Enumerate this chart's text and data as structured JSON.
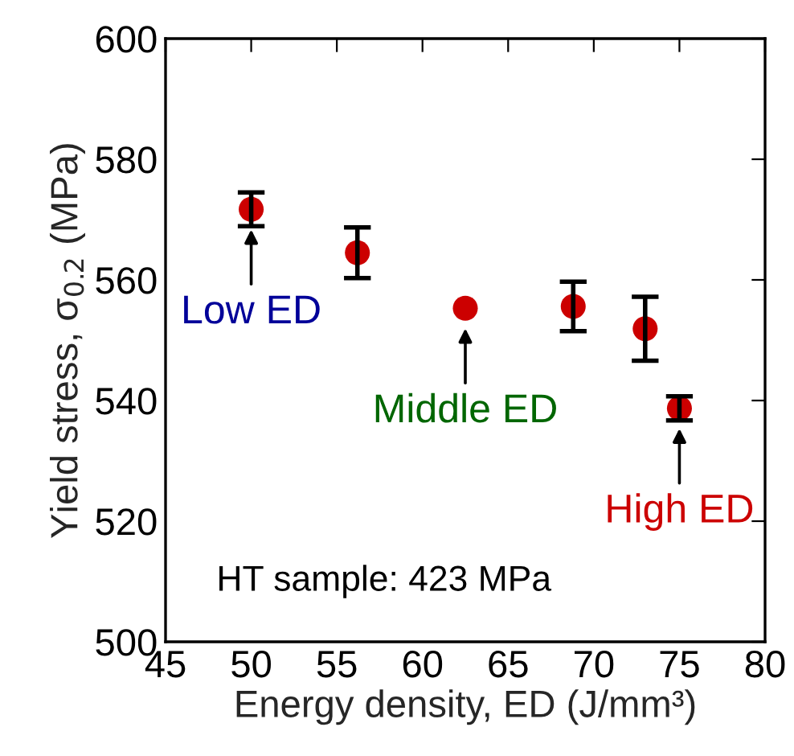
{
  "chart_data": {
    "type": "scatter",
    "xlabel": "Energy density, ED (J/mm³)",
    "ylabel": "Yield stress, σ$_{0.2}$ (MPa)",
    "x": [
      50,
      56.2,
      62.5,
      68.8,
      73,
      75
    ],
    "series": [
      {
        "color": "#cc0000",
        "values": [
          571.7,
          564.5,
          555.3,
          555.6,
          551.9,
          538.7
        ],
        "errors": [
          2.8,
          4.2,
          null,
          4.1,
          5.3,
          2
        ]
      }
    ],
    "xlim": [
      45,
      80
    ],
    "xticks": [
      45,
      50,
      55,
      60,
      65,
      70,
      75,
      80
    ],
    "ylim": [
      500,
      600
    ],
    "yticks": [
      500,
      520,
      540,
      560,
      580,
      600
    ],
    "marker": "circle",
    "grid": false,
    "annotations": [
      {
        "text": "Low ED",
        "x": 50,
        "y": 571.7
      },
      {
        "text": "Middle ED",
        "x": 62.5,
        "y": 555.3
      },
      {
        "text": "High ED",
        "x": 75,
        "y": 538.7
      },
      "HT sample: 423 MPa"
    ]
  }
}
